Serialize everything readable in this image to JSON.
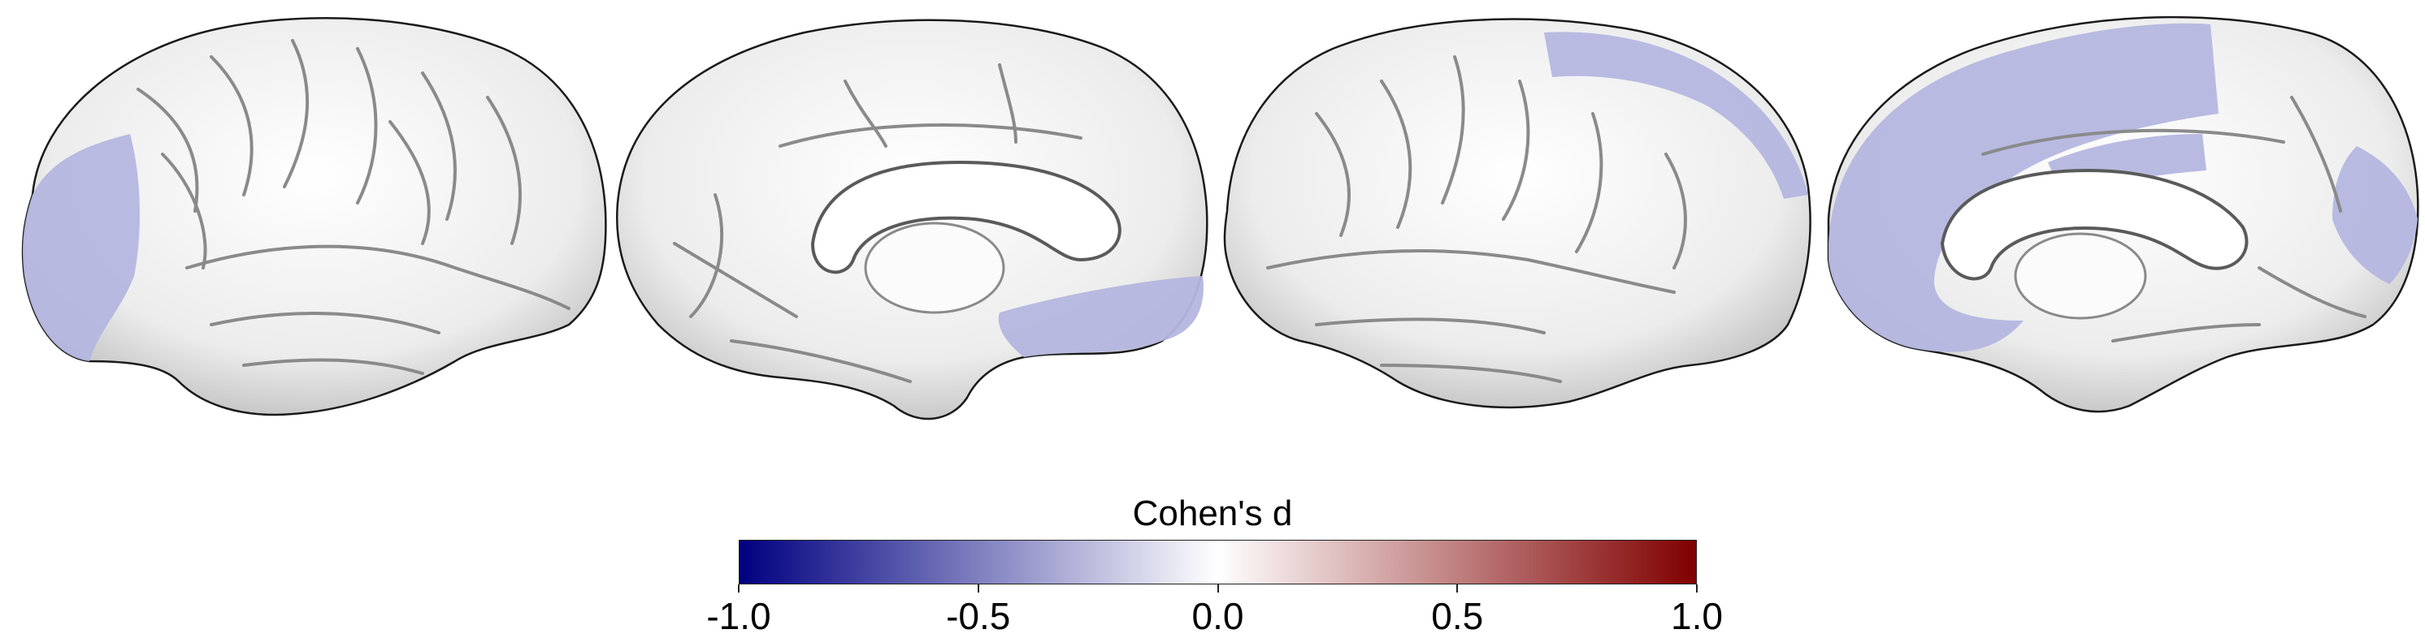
{
  "colorbar": {
    "title": "Cohen's d",
    "min": -1.0,
    "max": 1.0,
    "ticks": [
      {
        "value": -1.0,
        "label": "-1.0"
      },
      {
        "value": -0.5,
        "label": "-0.5"
      },
      {
        "value": 0.0,
        "label": "0.0"
      },
      {
        "value": 0.5,
        "label": "0.5"
      },
      {
        "value": 1.0,
        "label": "1.0"
      }
    ],
    "colors": {
      "low": "#000080",
      "mid": "#ffffff",
      "high": "#800000"
    }
  },
  "colors": {
    "cortex": "#f2f2f2",
    "sulcus": "#8a8a8a",
    "outline": "#1a1a1a",
    "effect_region": "#b4b6df"
  },
  "views": [
    {
      "hemisphere": "left",
      "view": "lateral"
    },
    {
      "hemisphere": "left",
      "view": "medial"
    },
    {
      "hemisphere": "right",
      "view": "lateral"
    },
    {
      "hemisphere": "right",
      "view": "medial"
    }
  ]
}
